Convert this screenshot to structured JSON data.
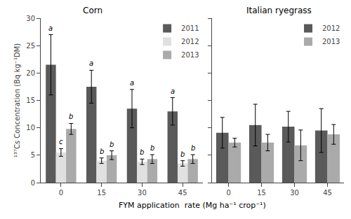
{
  "chart_data": [
    {
      "type": "bar",
      "title": "Corn",
      "categories": [
        "0",
        "15",
        "30",
        "45"
      ],
      "xlabel": "FYM application  rate (Mg ha⁻¹ crop⁻¹)",
      "ylabel": "¹³⁷Cs Concentration (Bq kg⁻¹DM)",
      "series": [
        {
          "name": "2011",
          "color": "#5a5a5a",
          "values": [
            21.5,
            17.5,
            13.5,
            13.0
          ],
          "errors": [
            5.5,
            3.0,
            3.5,
            2.5
          ],
          "annotations": [
            "a",
            "a",
            "a",
            "a"
          ]
        },
        {
          "name": "2012",
          "color": "#e0e0e0",
          "values": [
            5.5,
            4.0,
            3.8,
            3.5
          ],
          "errors": [
            0.7,
            0.5,
            0.5,
            0.5
          ],
          "annotations": [
            "c",
            "b",
            "b",
            "b"
          ]
        },
        {
          "name": "2013",
          "color": "#aaaaaa",
          "values": [
            9.8,
            5.0,
            4.3,
            4.3
          ],
          "errors": [
            1.0,
            0.8,
            0.8,
            0.8
          ],
          "annotations": [
            "b",
            "b",
            "b",
            "b"
          ]
        }
      ],
      "ylim": [
        0,
        30
      ],
      "yticks": [
        0,
        5,
        10,
        15,
        20,
        25,
        30
      ],
      "legend": "upper right",
      "grid": false
    },
    {
      "type": "bar",
      "title": "Italian ryegrass",
      "categories": [
        "0",
        "15",
        "30",
        "45"
      ],
      "series": [
        {
          "name": "2012",
          "color": "#5a5a5a",
          "values": [
            9.1,
            10.5,
            10.2,
            9.5
          ],
          "errors": [
            2.8,
            3.8,
            2.8,
            4.0
          ]
        },
        {
          "name": "2013",
          "color": "#aaaaaa",
          "values": [
            7.3,
            7.3,
            6.8,
            8.8
          ],
          "errors": [
            0.8,
            1.5,
            2.8,
            1.8
          ]
        }
      ],
      "ylim": [
        0,
        30
      ],
      "yticks": [
        0,
        5,
        10,
        15,
        20,
        25,
        30
      ],
      "legend": "upper right",
      "grid": false,
      "tick_labels": "x"
    }
  ]
}
